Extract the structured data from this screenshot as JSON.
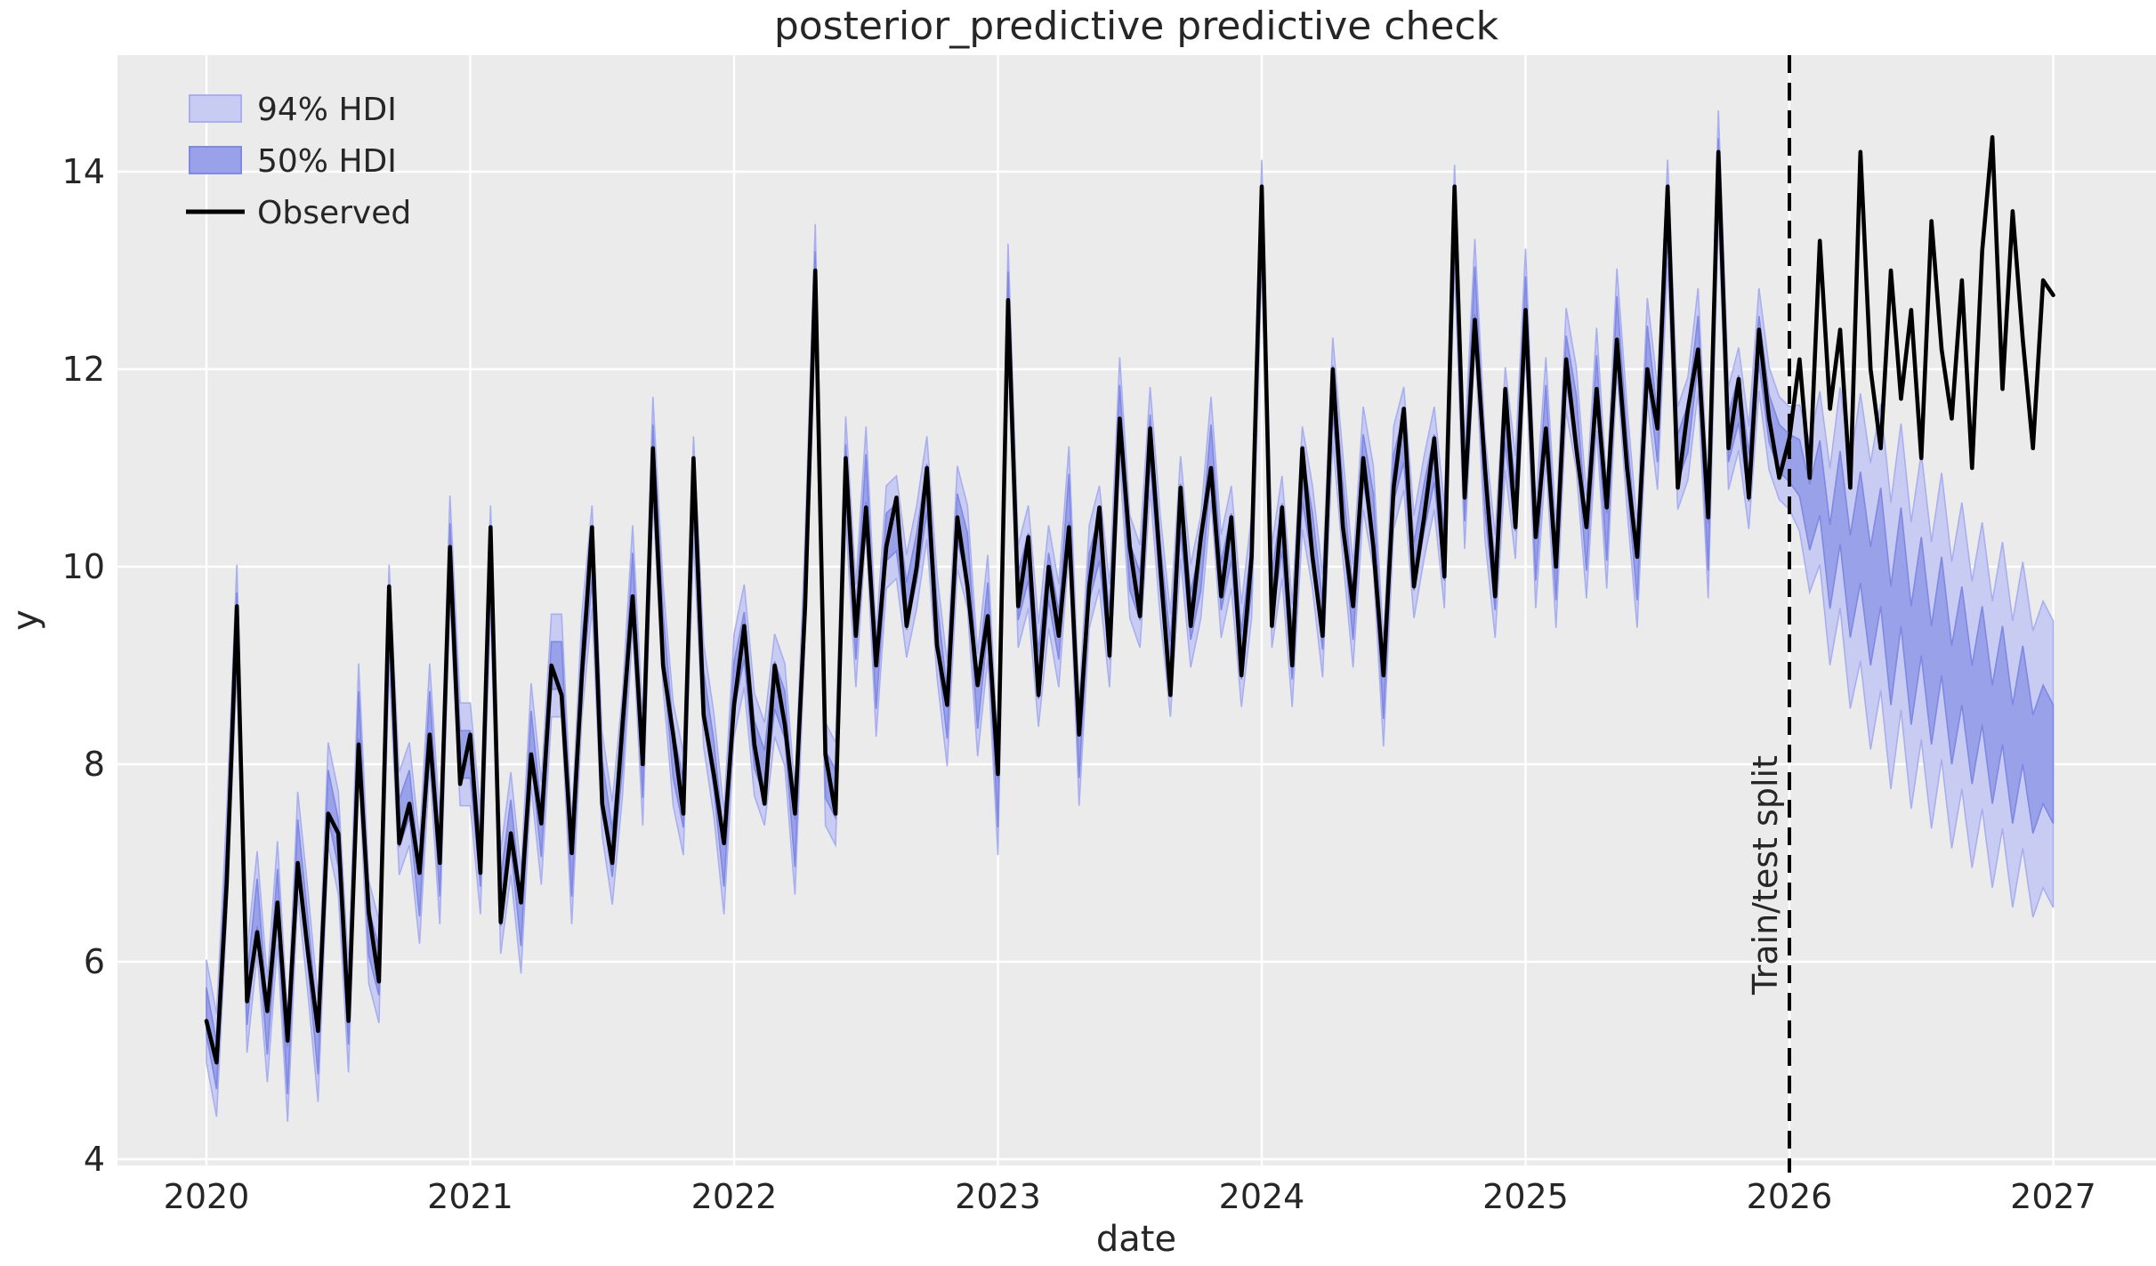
{
  "title": "posterior_predictive predictive check",
  "legend": {
    "hdi94_label": "94% HDI",
    "hdi50_label": "50% HDI",
    "observed_label": "Observed"
  },
  "annotations": {
    "split_label": "Train/test split",
    "split_x": 2026.0
  },
  "colors": {
    "figure_bg": "#ffffff",
    "axes_bg": "#ebebeb",
    "grid": "#ffffff",
    "text": "#262626",
    "observed_line": "#000000",
    "hdi94_fill": "#c8ccf2",
    "hdi94_edge": "#a9afee",
    "hdi50_fill": "#99a1e8",
    "hdi50_edge": "#7f88e2",
    "split_line": "#000000"
  },
  "chart_data": {
    "type": "line",
    "title": "posterior_predictive predictive check",
    "xlabel": "date",
    "ylabel": "y",
    "x_ticks": [
      2020,
      2021,
      2022,
      2023,
      2024,
      2025,
      2026,
      2027
    ],
    "y_ticks": [
      4,
      6,
      8,
      10,
      12,
      14
    ],
    "xlim": [
      2019.66,
      2027.39
    ],
    "ylim": [
      3.94,
      15.18
    ],
    "grid": true,
    "legend_position": "upper left",
    "x_start": 2020.0,
    "x_step": 0.03846153846,
    "observed": [
      5.4,
      4.98,
      6.8,
      9.6,
      5.6,
      6.3,
      5.5,
      6.6,
      5.2,
      7.0,
      6.1,
      5.3,
      7.5,
      7.3,
      5.4,
      8.2,
      6.5,
      5.8,
      9.8,
      7.2,
      7.6,
      6.9,
      8.3,
      7.0,
      10.2,
      7.8,
      8.3,
      6.9,
      10.4,
      6.4,
      7.3,
      6.6,
      8.1,
      7.4,
      9.0,
      8.7,
      7.1,
      8.9,
      10.4,
      7.6,
      7.0,
      8.4,
      9.7,
      8.0,
      11.2,
      9.0,
      8.3,
      7.5,
      11.1,
      8.5,
      7.9,
      7.2,
      8.6,
      9.4,
      8.2,
      7.6,
      9.0,
      8.4,
      7.5,
      9.6,
      13.0,
      8.1,
      7.5,
      11.1,
      9.3,
      10.6,
      9.0,
      10.2,
      10.7,
      9.4,
      10.0,
      11.0,
      9.2,
      8.6,
      10.5,
      9.8,
      8.8,
      9.5,
      7.9,
      12.7,
      9.6,
      10.3,
      8.7,
      10.0,
      9.3,
      10.4,
      8.3,
      9.8,
      10.6,
      9.1,
      11.5,
      10.2,
      9.5,
      11.4,
      10.0,
      8.7,
      10.8,
      9.4,
      10.3,
      11.0,
      9.7,
      10.5,
      8.9,
      10.1,
      13.85,
      9.4,
      10.6,
      9.0,
      11.2,
      10.1,
      9.3,
      12.0,
      10.4,
      9.6,
      11.1,
      10.2,
      8.9,
      10.8,
      11.6,
      9.8,
      10.5,
      11.3,
      9.9,
      13.85,
      10.7,
      12.5,
      11.0,
      9.7,
      11.8,
      10.4,
      12.6,
      10.3,
      11.4,
      10.0,
      12.1,
      11.2,
      10.4,
      11.8,
      10.6,
      12.3,
      11.0,
      10.1,
      12.0,
      11.4,
      13.85,
      10.8,
      11.6,
      12.2,
      10.5,
      14.2,
      11.2,
      11.9,
      10.7,
      12.4,
      11.5,
      10.9,
      11.3,
      12.1,
      10.9,
      13.3,
      11.6,
      12.4,
      10.8,
      14.2,
      12.0,
      11.2,
      13.0,
      11.7,
      12.6,
      11.1,
      13.5,
      12.2,
      11.5,
      12.9,
      11.0,
      13.2,
      14.35,
      11.8,
      13.6,
      12.3,
      11.2,
      12.9,
      12.75
    ],
    "predicted_center": [
      5.5,
      4.95,
      7.0,
      9.5,
      5.6,
      6.6,
      5.3,
      6.7,
      4.9,
      7.2,
      6.2,
      5.1,
      7.7,
      7.2,
      5.4,
      8.5,
      6.3,
      5.9,
      9.5,
      7.4,
      7.7,
      6.7,
      8.5,
      6.9,
      10.2,
      8.1,
      8.1,
      7.0,
      10.1,
      6.6,
      7.4,
      6.4,
      8.3,
      7.3,
      9.0,
      9.0,
      6.9,
      9.0,
      10.1,
      7.8,
      7.1,
      8.2,
      9.9,
      7.9,
      11.2,
      9.3,
      8.1,
      7.6,
      10.8,
      8.7,
      8.0,
      7.0,
      8.8,
      9.3,
      8.2,
      7.9,
      8.8,
      8.5,
      7.2,
      9.8,
      12.95,
      7.9,
      7.7,
      11.0,
      9.3,
      10.9,
      8.8,
      10.3,
      10.4,
      9.6,
      10.1,
      10.8,
      9.4,
      8.5,
      10.5,
      10.1,
      8.6,
      9.6,
      7.6,
      12.75,
      9.7,
      10.1,
      8.9,
      9.9,
      9.3,
      10.7,
      8.1,
      9.9,
      10.3,
      9.3,
      11.6,
      10.0,
      9.7,
      11.3,
      10.0,
      9.0,
      10.6,
      9.5,
      10.0,
      11.2,
      9.8,
      10.3,
      9.1,
      10.0,
      13.6,
      9.7,
      10.4,
      9.1,
      10.9,
      10.3,
      9.4,
      11.8,
      10.6,
      9.5,
      11.1,
      10.5,
      8.7,
      10.9,
      11.3,
      10.0,
      10.6,
      11.1,
      10.1,
      13.55,
      10.7,
      12.8,
      10.8,
      9.8,
      11.5,
      10.6,
      12.7,
      10.1,
      11.6,
      9.9,
      12.1,
      11.5,
      10.2,
      11.9,
      10.3,
      12.5,
      11.1,
      9.9,
      12.2,
      11.3,
      13.6,
      11.1,
      11.4,
      12.3,
      10.2,
      14.1,
      11.3,
      11.7,
      10.9,
      12.3,
      11.5,
      11.2,
      11.1,
      11.0,
      10.5,
      10.9,
      10.0,
      10.7,
      9.8,
      10.4,
      9.6,
      10.2,
      9.2,
      10.0,
      9.0,
      9.7,
      8.8,
      9.5,
      8.6,
      9.2,
      8.4,
      9.0,
      8.2,
      8.8,
      8.0,
      8.6,
      7.9,
      8.2,
      8.0
    ],
    "hdi": {
      "train_end_x": 2026.0,
      "half_width_94_train": 0.52,
      "half_width_94_test": 1.45,
      "half_width_50_train": 0.24,
      "half_width_50_test": 0.6,
      "widen_ramp_years": 0.3
    }
  }
}
